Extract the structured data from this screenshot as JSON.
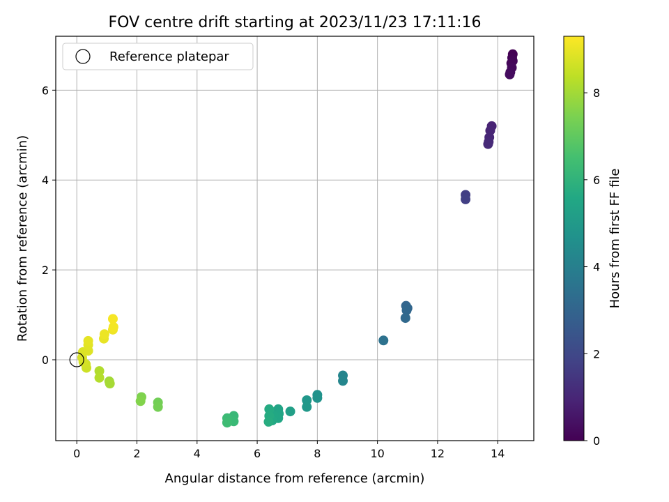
{
  "chart_data": {
    "type": "scatter",
    "title": "FOV centre drift starting at 2023/11/23 17:11:16",
    "xlabel": "Angular distance from reference (arcmin)",
    "ylabel": "Rotation from reference (arcmin)",
    "xlim": [
      -0.7,
      15.2
    ],
    "ylim": [
      -1.8,
      7.2
    ],
    "xticks": [
      0,
      2,
      4,
      6,
      8,
      10,
      12,
      14
    ],
    "yticks": [
      0,
      2,
      4,
      6
    ],
    "grid": true,
    "legend": {
      "label": "Reference platepar",
      "placement": "top-left"
    },
    "reference_point": {
      "x": 0,
      "y": 0
    },
    "colorbar": {
      "label": "Hours from first FF file",
      "range": [
        0,
        9.3
      ],
      "ticks": [
        0,
        2,
        4,
        6,
        8
      ],
      "colormap": "viridis"
    },
    "points": [
      {
        "x": 14.5,
        "y": 6.8,
        "c": 0.0
      },
      {
        "x": 14.48,
        "y": 6.72,
        "c": 0.05
      },
      {
        "x": 14.5,
        "y": 6.65,
        "c": 0.1
      },
      {
        "x": 14.45,
        "y": 6.6,
        "c": 0.15
      },
      {
        "x": 14.47,
        "y": 6.5,
        "c": 0.2
      },
      {
        "x": 14.42,
        "y": 6.4,
        "c": 0.25
      },
      {
        "x": 14.4,
        "y": 6.35,
        "c": 0.3
      },
      {
        "x": 13.8,
        "y": 5.2,
        "c": 0.9
      },
      {
        "x": 13.75,
        "y": 5.1,
        "c": 0.95
      },
      {
        "x": 13.72,
        "y": 4.95,
        "c": 1.0
      },
      {
        "x": 13.7,
        "y": 4.85,
        "c": 1.05
      },
      {
        "x": 13.68,
        "y": 4.8,
        "c": 1.1
      },
      {
        "x": 12.93,
        "y": 3.67,
        "c": 1.7
      },
      {
        "x": 12.93,
        "y": 3.57,
        "c": 1.75
      },
      {
        "x": 10.95,
        "y": 1.2,
        "c": 3.0
      },
      {
        "x": 11.0,
        "y": 1.15,
        "c": 3.05
      },
      {
        "x": 10.97,
        "y": 1.1,
        "c": 3.1
      },
      {
        "x": 10.93,
        "y": 0.93,
        "c": 3.15
      },
      {
        "x": 10.2,
        "y": 0.43,
        "c": 3.5
      },
      {
        "x": 8.85,
        "y": -0.35,
        "c": 4.2
      },
      {
        "x": 8.85,
        "y": -0.47,
        "c": 4.25
      },
      {
        "x": 8.0,
        "y": -0.78,
        "c": 4.7
      },
      {
        "x": 8.0,
        "y": -0.85,
        "c": 4.75
      },
      {
        "x": 7.65,
        "y": -0.9,
        "c": 4.9
      },
      {
        "x": 7.65,
        "y": -1.05,
        "c": 4.95
      },
      {
        "x": 7.1,
        "y": -1.15,
        "c": 5.2
      },
      {
        "x": 6.7,
        "y": -1.1,
        "c": 5.4
      },
      {
        "x": 6.72,
        "y": -1.2,
        "c": 5.45
      },
      {
        "x": 6.7,
        "y": -1.3,
        "c": 5.5
      },
      {
        "x": 6.55,
        "y": -1.25,
        "c": 5.55
      },
      {
        "x": 6.5,
        "y": -1.35,
        "c": 5.6
      },
      {
        "x": 6.4,
        "y": -1.1,
        "c": 5.65
      },
      {
        "x": 6.4,
        "y": -1.25,
        "c": 5.7
      },
      {
        "x": 6.38,
        "y": -1.38,
        "c": 5.75
      },
      {
        "x": 5.22,
        "y": -1.25,
        "c": 6.2
      },
      {
        "x": 5.22,
        "y": -1.37,
        "c": 6.25
      },
      {
        "x": 5.0,
        "y": -1.3,
        "c": 6.3
      },
      {
        "x": 5.0,
        "y": -1.4,
        "c": 6.35
      },
      {
        "x": 2.7,
        "y": -0.95,
        "c": 7.3
      },
      {
        "x": 2.7,
        "y": -1.05,
        "c": 7.35
      },
      {
        "x": 2.15,
        "y": -0.83,
        "c": 7.5
      },
      {
        "x": 2.12,
        "y": -0.92,
        "c": 7.55
      },
      {
        "x": 1.08,
        "y": -0.48,
        "c": 8.0
      },
      {
        "x": 1.1,
        "y": -0.53,
        "c": 8.05
      },
      {
        "x": 0.75,
        "y": -0.25,
        "c": 8.2
      },
      {
        "x": 0.75,
        "y": -0.4,
        "c": 8.25
      },
      {
        "x": 0.32,
        "y": -0.18,
        "c": 8.6
      },
      {
        "x": 0.3,
        "y": -0.1,
        "c": 8.65
      },
      {
        "x": 0.22,
        "y": -0.05,
        "c": 8.7
      },
      {
        "x": 0.18,
        "y": 0.05,
        "c": 8.75
      },
      {
        "x": 0.2,
        "y": 0.17,
        "c": 8.8
      },
      {
        "x": 0.38,
        "y": 0.2,
        "c": 8.85
      },
      {
        "x": 0.38,
        "y": 0.33,
        "c": 8.9
      },
      {
        "x": 0.38,
        "y": 0.42,
        "c": 8.95
      },
      {
        "x": 0.9,
        "y": 0.47,
        "c": 9.0
      },
      {
        "x": 0.92,
        "y": 0.57,
        "c": 9.05
      },
      {
        "x": 1.2,
        "y": 0.67,
        "c": 9.1
      },
      {
        "x": 1.22,
        "y": 0.73,
        "c": 9.15
      },
      {
        "x": 1.2,
        "y": 0.91,
        "c": 9.2
      }
    ]
  }
}
